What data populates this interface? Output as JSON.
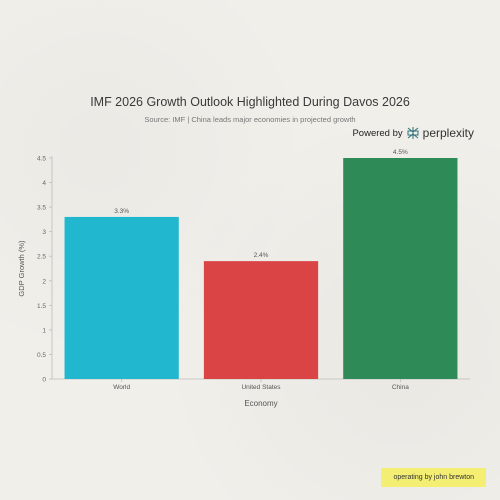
{
  "header": {
    "title": "IMF 2026 Growth Outlook Highlighted During Davos 2026",
    "subtitle": "Source: IMF | China leads major economies in projected growth",
    "powered_by": "Powered by",
    "brand": "perplexity"
  },
  "badge": {
    "label": "operating by john brewton"
  },
  "chart_data": {
    "type": "bar",
    "categories": [
      "World",
      "United States",
      "China"
    ],
    "values": [
      3.3,
      2.4,
      4.5
    ],
    "value_labels": [
      "3.3%",
      "2.4%",
      "4.5%"
    ],
    "colors": [
      "#21b8cf",
      "#db4444",
      "#2e8b57"
    ],
    "xlabel": "Economy",
    "ylabel": "GDP Growth (%)",
    "ylim": [
      0,
      4.5
    ],
    "yticks": [
      "0",
      "0.5",
      "1",
      "1.5",
      "2",
      "2.5",
      "3",
      "3.5",
      "4",
      "4.5"
    ],
    "grid": false
  }
}
